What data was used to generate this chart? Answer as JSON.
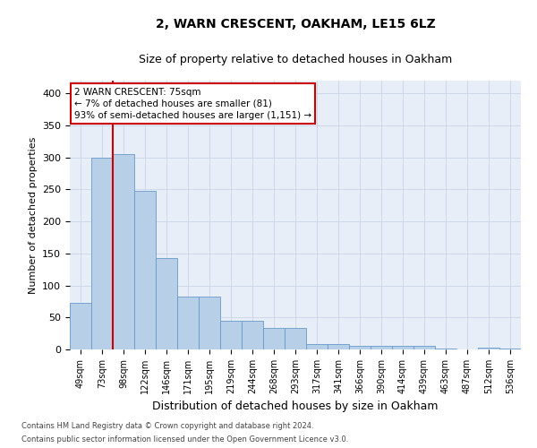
{
  "title": "2, WARN CRESCENT, OAKHAM, LE15 6LZ",
  "subtitle": "Size of property relative to detached houses in Oakham",
  "xlabel": "Distribution of detached houses by size in Oakham",
  "ylabel": "Number of detached properties",
  "categories": [
    "49sqm",
    "73sqm",
    "98sqm",
    "122sqm",
    "146sqm",
    "171sqm",
    "195sqm",
    "219sqm",
    "244sqm",
    "268sqm",
    "293sqm",
    "317sqm",
    "341sqm",
    "366sqm",
    "390sqm",
    "414sqm",
    "439sqm",
    "463sqm",
    "487sqm",
    "512sqm",
    "536sqm"
  ],
  "values": [
    73,
    300,
    305,
    248,
    143,
    83,
    83,
    45,
    45,
    33,
    33,
    9,
    9,
    6,
    6,
    5,
    5,
    1,
    0,
    3,
    2
  ],
  "bar_color": "#b8cfe8",
  "bar_edge_color": "#6899cc",
  "vline_x": 1.5,
  "vline_color": "#cc0000",
  "annotation_text": "2 WARN CRESCENT: 75sqm\n← 7% of detached houses are smaller (81)\n93% of semi-detached houses are larger (1,151) →",
  "annotation_box_color": "#ffffff",
  "annotation_box_edge": "#cc0000",
  "ylim": [
    0,
    420
  ],
  "yticks": [
    0,
    50,
    100,
    150,
    200,
    250,
    300,
    350,
    400
  ],
  "grid_color": "#c8d4e8",
  "background_color": "#e8eef8",
  "footer1": "Contains HM Land Registry data © Crown copyright and database right 2024.",
  "footer2": "Contains public sector information licensed under the Open Government Licence v3.0.",
  "title_fontsize": 10,
  "subtitle_fontsize": 9,
  "xlabel_fontsize": 9,
  "ylabel_fontsize": 8,
  "tick_fontsize": 7,
  "annotation_fontsize": 7.5
}
